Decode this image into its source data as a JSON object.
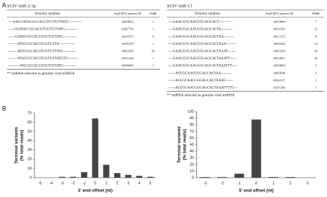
{
  "panel_a": {
    "label": "A",
    "tables": [
      {
        "title": "SGIV miR-2-3p",
        "columns": [
          "Terminal variation",
          "Small RNA sequence ID",
          "reads"
        ],
        "rows": [
          [
            "----AAGGATACGGCACGTGGTGTTATG-----------",
            "t0349815",
            1
          ],
          [
            "-----GGATACGGCACGTGGTGTTATG-----------",
            "t0287724",
            1
          ],
          [
            "------GATACGGCACGTGGTGTTATG-----------",
            "t0016537",
            9
          ],
          [
            "--------ATACGGCACGTGGTGTTA--------------",
            "t0331476",
            1
          ],
          [
            "--------ATACGGCACGTGGTGTTATG-----------",
            "t0002354",
            81
          ],
          [
            "--------ATACGGCACGTGGTGTTATGTG---------",
            "t0321422",
            1
          ],
          [
            "----------TACGGCACGTGGTGTTATG-----------",
            "t0206803",
            1
          ]
        ],
        "footnote": "** miRNA selected as genuine viral miRNA"
      },
      {
        "title": "SGIV miR-13",
        "columns": [
          "Terminal variation",
          "Small RNA sequence ID",
          "reads"
        ],
        "rows": [
          [
            "----GAACGGCAACGGGAGCACT-----------",
            "t0019696",
            7
          ],
          [
            "----GAACGGCAACGGGAGCACTA----------",
            "t0011833",
            12
          ],
          [
            "----GAACGGCAACGGGAGCACTAA---------",
            "t0017273",
            8
          ],
          [
            "----GAACGGCAACGGGAGCACTAAA--------",
            "t0010416",
            14
          ],
          [
            "----GAACGGCAACGGGAGCACTAAAT-------",
            "t0005539",
            29
          ],
          [
            "----GAACGGCAACGGGAGCACTAAATT------",
            "t0014937",
            10
          ],
          [
            "----GAACGGCAACGGGAGCACTAAATTT-----",
            "t0050839",
            3
          ],
          [
            "------ACGGCAACGGGAGCACTAA---------",
            "t0059546",
            2
          ],
          [
            "------ACGGCAACGGGAGCACTAAAT-------",
            "t0342317",
            1
          ],
          [
            "------ACGGCAACGGGAGCACTAAATTTTG---",
            "t0311266",
            1
          ]
        ],
        "footnote": "** miRNA selected as genuine viral miRNA"
      }
    ]
  },
  "panel_b": {
    "label": "B"
  },
  "chart_data": [
    {
      "type": "bar",
      "ylabel": [
        "Terminal variants",
        "(% total reads)"
      ],
      "xlabel": "3' end offset (nt)",
      "categories": [
        "-5",
        "-4",
        "-3",
        "-2",
        "-1",
        "0",
        "1",
        "2",
        "3",
        "4",
        "5"
      ],
      "values": [
        0,
        0,
        1,
        1,
        6,
        64,
        14,
        5,
        3,
        2,
        1
      ],
      "color": "#444444",
      "ylim": [
        0,
        70
      ],
      "yticks": [
        0,
        10,
        20,
        30,
        40,
        50,
        60,
        70
      ]
    },
    {
      "type": "bar",
      "ylabel": [
        "Terminal variants",
        "(% total reads)"
      ],
      "xlabel": "5' end offset (nt)",
      "categories": [
        "-3",
        "-2",
        "-1",
        "0",
        "1",
        "2",
        "3"
      ],
      "values": [
        1,
        1,
        6,
        88,
        1,
        1,
        0
      ],
      "color": "#444444",
      "ylim": [
        0,
        100
      ],
      "yticks": [
        0,
        10,
        20,
        30,
        40,
        50,
        60,
        70,
        80,
        90,
        100
      ]
    }
  ]
}
